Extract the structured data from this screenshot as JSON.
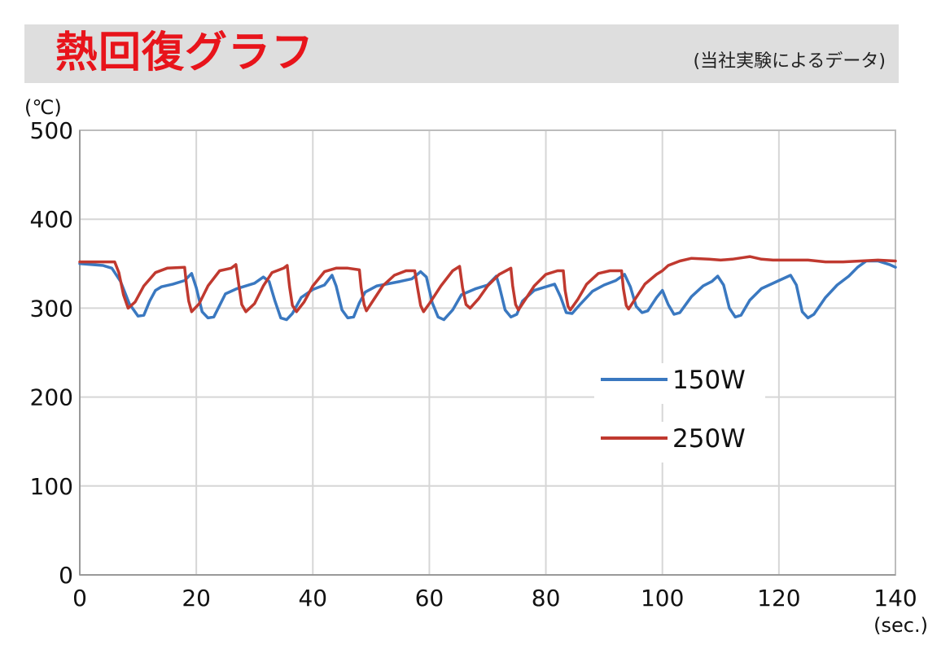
{
  "header": {
    "title": "熱回復グラフ",
    "subtitle": "(当社実験によるデータ)"
  },
  "colors": {
    "title_red": "#e8141b",
    "band_gray": "#dedede",
    "series_150w": "#3a78c0",
    "series_250w": "#c0392f",
    "grid": "#d6d6d6"
  },
  "chart_data": {
    "type": "line",
    "title": "熱回復グラフ",
    "subtitle": "(当社実験によるデータ)",
    "xlabel": "(sec.)",
    "ylabel": "(℃)",
    "xlim": [
      0,
      140
    ],
    "ylim": [
      0,
      500
    ],
    "x_ticks": [
      "0",
      "20",
      "40",
      "60",
      "80",
      "100",
      "120",
      "140"
    ],
    "y_ticks": [
      "500",
      "400",
      "300",
      "200",
      "100",
      "0"
    ],
    "grid": true,
    "legend_position": "right-middle",
    "series": [
      {
        "name": "150W",
        "color": "#3a78c0",
        "points": [
          [
            0,
            350
          ],
          [
            2,
            349
          ],
          [
            4,
            348
          ],
          [
            5.5,
            345
          ],
          [
            7,
            330
          ],
          [
            8.5,
            305
          ],
          [
            10,
            291
          ],
          [
            11,
            292
          ],
          [
            12,
            308
          ],
          [
            13,
            320
          ],
          [
            14,
            324
          ],
          [
            16,
            327
          ],
          [
            18,
            331
          ],
          [
            19.2,
            339
          ],
          [
            20,
            323
          ],
          [
            21,
            296
          ],
          [
            22,
            289
          ],
          [
            23,
            290
          ],
          [
            24,
            303
          ],
          [
            25,
            316
          ],
          [
            27,
            322
          ],
          [
            30,
            328
          ],
          [
            31.5,
            335
          ],
          [
            32.5,
            330
          ],
          [
            33.5,
            308
          ],
          [
            34.5,
            289
          ],
          [
            35.5,
            287
          ],
          [
            36.5,
            294
          ],
          [
            38,
            312
          ],
          [
            40,
            321
          ],
          [
            42,
            326
          ],
          [
            43.3,
            337
          ],
          [
            44,
            325
          ],
          [
            45,
            298
          ],
          [
            46,
            289
          ],
          [
            47,
            290
          ],
          [
            48,
            306
          ],
          [
            49,
            318
          ],
          [
            51,
            325
          ],
          [
            55,
            330
          ],
          [
            57,
            333
          ],
          [
            58.5,
            341
          ],
          [
            59.5,
            335
          ],
          [
            60.5,
            306
          ],
          [
            61.5,
            290
          ],
          [
            62.5,
            287
          ],
          [
            64,
            298
          ],
          [
            65.5,
            315
          ],
          [
            68,
            322
          ],
          [
            70,
            326
          ],
          [
            71.5,
            336
          ],
          [
            72,
            325
          ],
          [
            73,
            298
          ],
          [
            74,
            290
          ],
          [
            75,
            293
          ],
          [
            76,
            308
          ],
          [
            78,
            320
          ],
          [
            80,
            324
          ],
          [
            81.5,
            327
          ],
          [
            82.5,
            313
          ],
          [
            83.5,
            295
          ],
          [
            84.5,
            294
          ],
          [
            86,
            305
          ],
          [
            88,
            319
          ],
          [
            90,
            326
          ],
          [
            92,
            331
          ],
          [
            93.5,
            338
          ],
          [
            94.5,
            324
          ],
          [
            95.5,
            302
          ],
          [
            96.5,
            295
          ],
          [
            97.5,
            297
          ],
          [
            99,
            312
          ],
          [
            100,
            320
          ],
          [
            101,
            304
          ],
          [
            102,
            293
          ],
          [
            103,
            295
          ],
          [
            105,
            313
          ],
          [
            107,
            325
          ],
          [
            108.5,
            330
          ],
          [
            109.5,
            336
          ],
          [
            110.5,
            326
          ],
          [
            111.5,
            300
          ],
          [
            112.5,
            290
          ],
          [
            113.5,
            292
          ],
          [
            115,
            309
          ],
          [
            117,
            322
          ],
          [
            120,
            331
          ],
          [
            122,
            337
          ],
          [
            123,
            326
          ],
          [
            124,
            296
          ],
          [
            125,
            289
          ],
          [
            126,
            293
          ],
          [
            128,
            312
          ],
          [
            130,
            326
          ],
          [
            132,
            336
          ],
          [
            133.5,
            346
          ],
          [
            135,
            353
          ],
          [
            137,
            353
          ],
          [
            139,
            349
          ],
          [
            140,
            346
          ]
        ]
      },
      {
        "name": "250W",
        "color": "#c0392f",
        "points": [
          [
            0,
            352
          ],
          [
            3,
            352
          ],
          [
            6,
            352
          ],
          [
            6.7,
            340
          ],
          [
            7.5,
            315
          ],
          [
            8.3,
            300
          ],
          [
            9.5,
            307
          ],
          [
            11,
            325
          ],
          [
            13,
            340
          ],
          [
            15,
            345
          ],
          [
            18,
            346
          ],
          [
            18.3,
            327
          ],
          [
            18.7,
            308
          ],
          [
            19.2,
            296
          ],
          [
            20.5,
            305
          ],
          [
            22,
            325
          ],
          [
            24,
            342
          ],
          [
            26,
            345
          ],
          [
            26.8,
            349
          ],
          [
            27.3,
            326
          ],
          [
            27.8,
            304
          ],
          [
            28.5,
            296
          ],
          [
            30,
            305
          ],
          [
            31.5,
            325
          ],
          [
            33,
            340
          ],
          [
            35,
            345
          ],
          [
            35.6,
            348
          ],
          [
            36,
            324
          ],
          [
            36.5,
            303
          ],
          [
            37.2,
            296
          ],
          [
            38.5,
            307
          ],
          [
            40,
            325
          ],
          [
            42,
            341
          ],
          [
            44,
            345
          ],
          [
            46,
            345
          ],
          [
            48,
            343
          ],
          [
            48.3,
            323
          ],
          [
            48.8,
            304
          ],
          [
            49.2,
            297
          ],
          [
            50.5,
            310
          ],
          [
            52,
            325
          ],
          [
            54,
            337
          ],
          [
            56,
            342
          ],
          [
            57.5,
            342
          ],
          [
            58,
            322
          ],
          [
            58.5,
            303
          ],
          [
            59,
            296
          ],
          [
            60,
            305
          ],
          [
            62,
            325
          ],
          [
            64,
            342
          ],
          [
            65.2,
            347
          ],
          [
            65.7,
            323
          ],
          [
            66.3,
            304
          ],
          [
            67,
            300
          ],
          [
            68.5,
            311
          ],
          [
            70,
            325
          ],
          [
            72,
            338
          ],
          [
            74,
            345
          ],
          [
            74.3,
            325
          ],
          [
            74.8,
            304
          ],
          [
            75.3,
            298
          ],
          [
            76.5,
            310
          ],
          [
            78,
            325
          ],
          [
            80,
            338
          ],
          [
            82,
            342
          ],
          [
            83,
            342
          ],
          [
            83.3,
            320
          ],
          [
            83.8,
            302
          ],
          [
            84.2,
            298
          ],
          [
            85.5,
            310
          ],
          [
            87,
            327
          ],
          [
            89,
            339
          ],
          [
            91,
            342
          ],
          [
            93,
            342
          ],
          [
            93.3,
            322
          ],
          [
            93.8,
            303
          ],
          [
            94.2,
            299
          ],
          [
            95.5,
            312
          ],
          [
            97,
            327
          ],
          [
            99,
            338
          ],
          [
            100,
            342
          ],
          [
            101,
            348
          ],
          [
            103,
            353
          ],
          [
            105,
            356
          ],
          [
            108,
            355
          ],
          [
            110,
            354
          ],
          [
            112,
            355
          ],
          [
            114,
            357
          ],
          [
            115,
            358
          ],
          [
            117,
            355
          ],
          [
            119,
            354
          ],
          [
            122,
            354
          ],
          [
            125,
            354
          ],
          [
            128,
            352
          ],
          [
            131,
            352
          ],
          [
            134,
            353
          ],
          [
            137,
            354
          ],
          [
            140,
            353
          ]
        ]
      }
    ]
  }
}
